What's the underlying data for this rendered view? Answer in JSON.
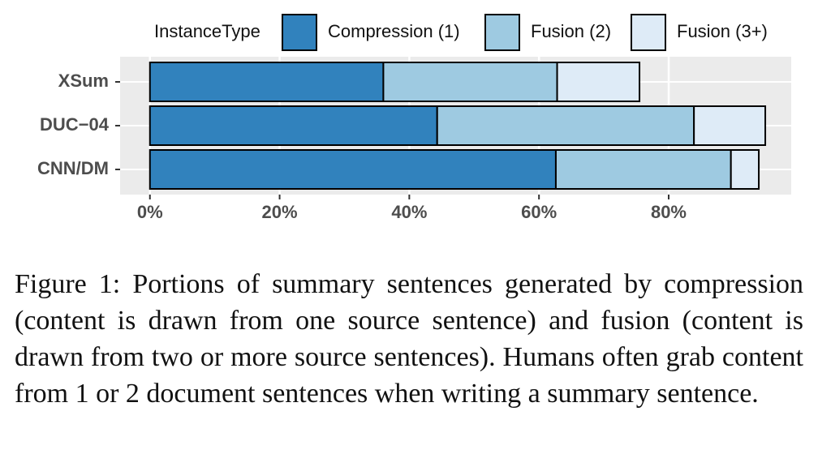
{
  "chart_data": {
    "type": "stacked-barh",
    "legend_title": "InstanceType",
    "categories": [
      "XSum",
      "DUC−04",
      "CNN/DM"
    ],
    "series": [
      {
        "name": "Compression (1)",
        "color": "#3182bd",
        "values": [
          36.0,
          44.3,
          62.6
        ]
      },
      {
        "name": "Fusion (2)",
        "color": "#9ecae1",
        "values": [
          26.8,
          39.6,
          27.0
        ]
      },
      {
        "name": "Fusion (3+)",
        "color": "#deebf7",
        "values": [
          12.7,
          11.0,
          4.3
        ]
      }
    ],
    "xlim": [
      -4.6,
      98.9
    ],
    "xticks": [
      {
        "value": 0,
        "label": "0%"
      },
      {
        "value": 20,
        "label": "20%"
      },
      {
        "value": 40,
        "label": "40%"
      },
      {
        "value": 60,
        "label": "60%"
      },
      {
        "value": 80,
        "label": "80%"
      }
    ],
    "grid": true,
    "legend": "top"
  },
  "caption": {
    "label": "Figure 1:",
    "text": "Portions of summary sentences generated by compression (content is drawn from one source sentence) and fusion (content is drawn from two or more source sentences). Humans often grab content from 1 or 2 document sentences when writing a summary sentence."
  }
}
